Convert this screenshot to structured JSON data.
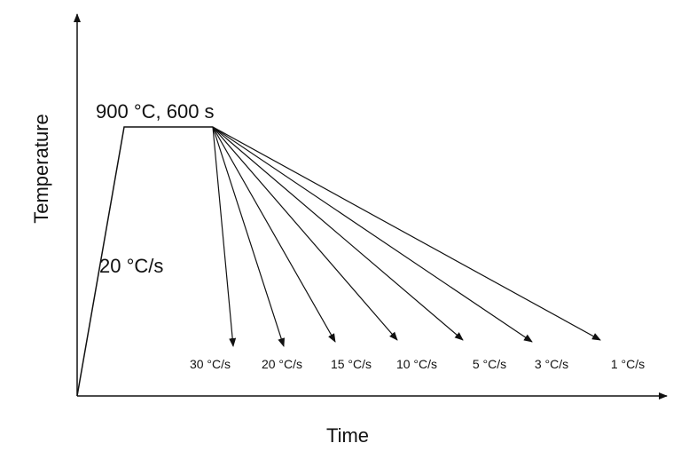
{
  "axes": {
    "x_label": "Time",
    "y_label": "Temperature"
  },
  "hold_label": "900 °C, 600 s",
  "heating_label": "20 °C/s",
  "cooling_rates": [
    "30 °C/s",
    "20 °C/s",
    "15 °C/s",
    "10 °C/s",
    "5 °C/s",
    "3 °C/s",
    "1 °C/s"
  ]
}
